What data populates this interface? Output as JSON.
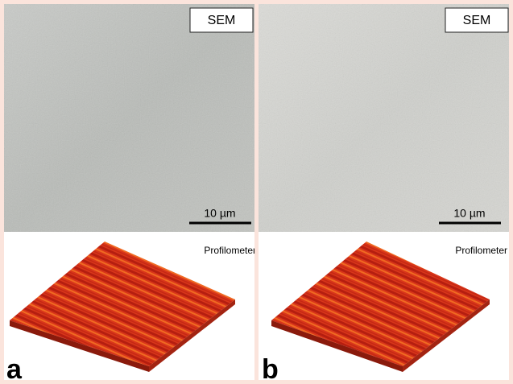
{
  "panels": [
    {
      "label": "a",
      "sem_label": "SEM",
      "scale_bar": "10 µm",
      "profile_label": "Profilometer"
    },
    {
      "label": "b",
      "sem_label": "SEM",
      "scale_bar": "10 µm",
      "profile_label": "Profilometer"
    }
  ]
}
